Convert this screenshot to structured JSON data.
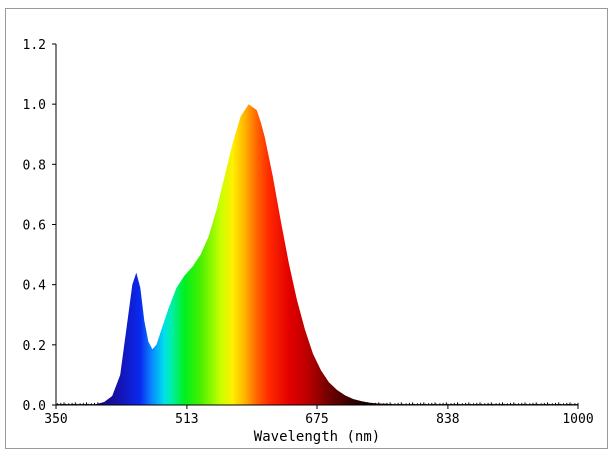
{
  "chart_data": {
    "type": "area",
    "title": "",
    "xlabel": "Wavelength (nm)",
    "ylabel": "",
    "xlim": [
      350,
      1000
    ],
    "ylim": [
      0,
      1.2
    ],
    "x_ticks": [
      350,
      513,
      675,
      838,
      1000
    ],
    "x_tick_labels": [
      "350",
      "513",
      "675",
      "838",
      "1000"
    ],
    "y_ticks": [
      0,
      0.2,
      0.4,
      0.6,
      0.8,
      1.0,
      1.2
    ],
    "y_tick_labels": [
      "0.0",
      "0.2",
      "0.4",
      "0.6",
      "0.8",
      "1.0",
      "1.2"
    ],
    "grid": false,
    "fill": "spectral color by wavelength",
    "series": [
      {
        "x": [
          350,
          400,
          410,
          420,
          430,
          440,
          445,
          450,
          455,
          460,
          465,
          470,
          475,
          480,
          490,
          500,
          510,
          520,
          530,
          540,
          550,
          560,
          570,
          580,
          590,
          600,
          605,
          610,
          620,
          630,
          640,
          650,
          660,
          670,
          680,
          690,
          700,
          710,
          720,
          730,
          740,
          750,
          760,
          770,
          780,
          790,
          800,
          820,
          850,
          900,
          950,
          1000
        ],
        "values": [
          0.003,
          0.003,
          0.01,
          0.03,
          0.1,
          0.3,
          0.4,
          0.44,
          0.39,
          0.28,
          0.21,
          0.185,
          0.2,
          0.24,
          0.32,
          0.39,
          0.43,
          0.46,
          0.5,
          0.56,
          0.65,
          0.76,
          0.87,
          0.96,
          1.0,
          0.98,
          0.94,
          0.89,
          0.76,
          0.61,
          0.47,
          0.35,
          0.25,
          0.17,
          0.115,
          0.075,
          0.05,
          0.032,
          0.02,
          0.013,
          0.008,
          0.005,
          0.004,
          0.003,
          0.003,
          0.003,
          0.003,
          0.003,
          0.003,
          0.003,
          0.003,
          0.003
        ]
      }
    ]
  }
}
